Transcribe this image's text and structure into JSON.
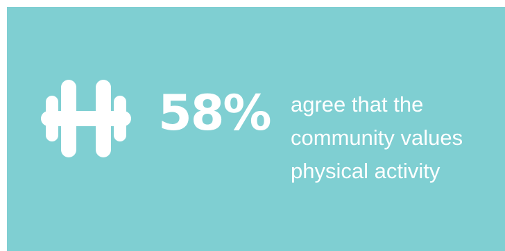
{
  "infographic": {
    "icon": "dumbbell-icon",
    "stat_value": "58%",
    "description_lines": [
      "agree that the",
      "community values",
      "physical activity"
    ]
  },
  "colors": {
    "background": "#7fcfd2",
    "foreground": "#ffffff"
  }
}
